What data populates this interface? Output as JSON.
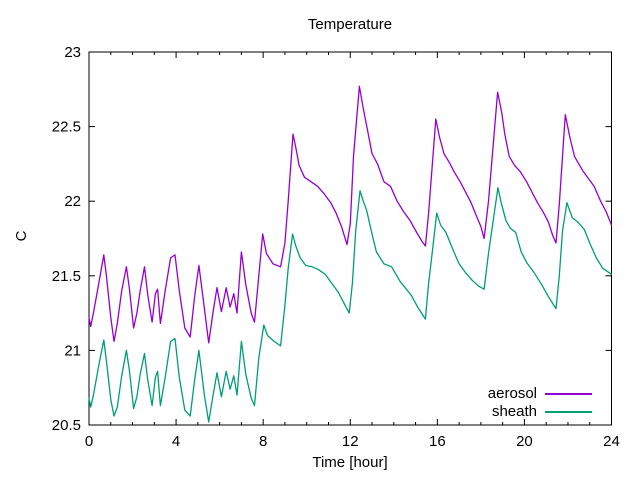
{
  "chart": {
    "background": "#ffffff",
    "text_color": "#000000",
    "border_color": "#000000"
  },
  "chart_data": {
    "type": "line",
    "title": "Temperature",
    "xlabel": "Time [hour]",
    "ylabel": "C",
    "xlim": [
      0,
      24
    ],
    "ylim": [
      20.5,
      23
    ],
    "x_ticks": [
      0,
      4,
      8,
      12,
      16,
      20,
      24
    ],
    "x_minor_tick_step": 1,
    "y_ticks": [
      20.5,
      21,
      21.5,
      22,
      22.5,
      23
    ],
    "grid": false,
    "legend_position": "bottom-right-inside",
    "series": [
      {
        "name": "aerosol",
        "color": "#9400d3",
        "points": [
          [
            0.0,
            21.22
          ],
          [
            0.08,
            21.16
          ],
          [
            0.2,
            21.25
          ],
          [
            0.45,
            21.45
          ],
          [
            0.68,
            21.64
          ],
          [
            0.8,
            21.5
          ],
          [
            1.0,
            21.22
          ],
          [
            1.15,
            21.06
          ],
          [
            1.3,
            21.18
          ],
          [
            1.5,
            21.4
          ],
          [
            1.72,
            21.56
          ],
          [
            1.85,
            21.42
          ],
          [
            2.05,
            21.15
          ],
          [
            2.2,
            21.25
          ],
          [
            2.35,
            21.4
          ],
          [
            2.55,
            21.56
          ],
          [
            2.7,
            21.37
          ],
          [
            2.9,
            21.19
          ],
          [
            3.05,
            21.38
          ],
          [
            3.15,
            21.41
          ],
          [
            3.28,
            21.18
          ],
          [
            3.5,
            21.4
          ],
          [
            3.75,
            21.62
          ],
          [
            3.95,
            21.64
          ],
          [
            4.15,
            21.4
          ],
          [
            4.4,
            21.15
          ],
          [
            4.65,
            21.09
          ],
          [
            4.85,
            21.36
          ],
          [
            5.05,
            21.57
          ],
          [
            5.3,
            21.28
          ],
          [
            5.5,
            21.05
          ],
          [
            5.7,
            21.26
          ],
          [
            5.88,
            21.42
          ],
          [
            6.08,
            21.26
          ],
          [
            6.3,
            21.42
          ],
          [
            6.48,
            21.29
          ],
          [
            6.65,
            21.38
          ],
          [
            6.8,
            21.25
          ],
          [
            7.0,
            21.66
          ],
          [
            7.2,
            21.44
          ],
          [
            7.45,
            21.25
          ],
          [
            7.6,
            21.19
          ],
          [
            7.8,
            21.5
          ],
          [
            7.98,
            21.78
          ],
          [
            8.15,
            21.65
          ],
          [
            8.45,
            21.58
          ],
          [
            8.8,
            21.56
          ],
          [
            9.0,
            21.72
          ],
          [
            9.15,
            22.0
          ],
          [
            9.37,
            22.45
          ],
          [
            9.5,
            22.36
          ],
          [
            9.65,
            22.24
          ],
          [
            9.9,
            22.16
          ],
          [
            10.2,
            22.13
          ],
          [
            10.5,
            22.1
          ],
          [
            10.8,
            22.05
          ],
          [
            11.1,
            21.99
          ],
          [
            11.35,
            21.92
          ],
          [
            11.6,
            21.83
          ],
          [
            11.85,
            21.71
          ],
          [
            12.0,
            21.85
          ],
          [
            12.15,
            22.3
          ],
          [
            12.42,
            22.77
          ],
          [
            12.6,
            22.62
          ],
          [
            12.8,
            22.47
          ],
          [
            13.0,
            22.32
          ],
          [
            13.25,
            22.25
          ],
          [
            13.55,
            22.13
          ],
          [
            13.85,
            22.1
          ],
          [
            14.15,
            22.0
          ],
          [
            14.45,
            21.93
          ],
          [
            14.75,
            21.87
          ],
          [
            15.05,
            21.79
          ],
          [
            15.3,
            21.73
          ],
          [
            15.45,
            21.7
          ],
          [
            15.6,
            21.92
          ],
          [
            15.93,
            22.55
          ],
          [
            16.1,
            22.43
          ],
          [
            16.3,
            22.32
          ],
          [
            16.55,
            22.26
          ],
          [
            16.8,
            22.19
          ],
          [
            17.05,
            22.13
          ],
          [
            17.3,
            22.06
          ],
          [
            17.55,
            21.99
          ],
          [
            17.8,
            21.9
          ],
          [
            18.0,
            21.83
          ],
          [
            18.15,
            21.75
          ],
          [
            18.35,
            22.0
          ],
          [
            18.77,
            22.73
          ],
          [
            18.95,
            22.6
          ],
          [
            19.1,
            22.45
          ],
          [
            19.3,
            22.3
          ],
          [
            19.55,
            22.24
          ],
          [
            19.8,
            22.2
          ],
          [
            20.1,
            22.13
          ],
          [
            20.35,
            22.06
          ],
          [
            20.6,
            21.99
          ],
          [
            20.85,
            21.93
          ],
          [
            21.1,
            21.86
          ],
          [
            21.3,
            21.77
          ],
          [
            21.45,
            21.72
          ],
          [
            21.6,
            21.98
          ],
          [
            21.88,
            22.58
          ],
          [
            22.1,
            22.42
          ],
          [
            22.3,
            22.3
          ],
          [
            22.5,
            22.25
          ],
          [
            22.7,
            22.2
          ],
          [
            22.95,
            22.15
          ],
          [
            23.2,
            22.1
          ],
          [
            23.5,
            22.0
          ],
          [
            23.75,
            21.93
          ],
          [
            24.0,
            21.84
          ]
        ]
      },
      {
        "name": "sheath",
        "color": "#009e73",
        "points": [
          [
            0.0,
            20.68
          ],
          [
            0.08,
            20.62
          ],
          [
            0.2,
            20.7
          ],
          [
            0.45,
            20.9
          ],
          [
            0.68,
            21.07
          ],
          [
            0.8,
            20.93
          ],
          [
            1.0,
            20.67
          ],
          [
            1.15,
            20.56
          ],
          [
            1.3,
            20.62
          ],
          [
            1.5,
            20.83
          ],
          [
            1.72,
            21.0
          ],
          [
            1.85,
            20.87
          ],
          [
            2.05,
            20.61
          ],
          [
            2.2,
            20.69
          ],
          [
            2.35,
            20.84
          ],
          [
            2.55,
            20.98
          ],
          [
            2.7,
            20.8
          ],
          [
            2.9,
            20.63
          ],
          [
            3.05,
            20.82
          ],
          [
            3.15,
            20.86
          ],
          [
            3.28,
            20.63
          ],
          [
            3.5,
            20.82
          ],
          [
            3.75,
            21.06
          ],
          [
            3.95,
            21.08
          ],
          [
            4.15,
            20.82
          ],
          [
            4.4,
            20.6
          ],
          [
            4.65,
            20.56
          ],
          [
            4.85,
            20.8
          ],
          [
            5.05,
            21.0
          ],
          [
            5.3,
            20.7
          ],
          [
            5.5,
            20.52
          ],
          [
            5.7,
            20.7
          ],
          [
            5.88,
            20.85
          ],
          [
            6.08,
            20.69
          ],
          [
            6.3,
            20.86
          ],
          [
            6.48,
            20.74
          ],
          [
            6.65,
            20.83
          ],
          [
            6.8,
            20.7
          ],
          [
            7.0,
            21.06
          ],
          [
            7.2,
            20.84
          ],
          [
            7.45,
            20.68
          ],
          [
            7.6,
            20.63
          ],
          [
            7.8,
            20.95
          ],
          [
            8.03,
            21.17
          ],
          [
            8.2,
            21.1
          ],
          [
            8.5,
            21.06
          ],
          [
            8.8,
            21.03
          ],
          [
            9.0,
            21.3
          ],
          [
            9.15,
            21.55
          ],
          [
            9.35,
            21.78
          ],
          [
            9.5,
            21.7
          ],
          [
            9.7,
            21.62
          ],
          [
            9.95,
            21.57
          ],
          [
            10.25,
            21.56
          ],
          [
            10.55,
            21.54
          ],
          [
            10.85,
            21.51
          ],
          [
            11.15,
            21.45
          ],
          [
            11.45,
            21.39
          ],
          [
            11.7,
            21.32
          ],
          [
            11.95,
            21.25
          ],
          [
            12.1,
            21.45
          ],
          [
            12.25,
            21.8
          ],
          [
            12.45,
            22.07
          ],
          [
            12.6,
            22.0
          ],
          [
            12.75,
            21.94
          ],
          [
            13.0,
            21.78
          ],
          [
            13.2,
            21.66
          ],
          [
            13.55,
            21.58
          ],
          [
            13.9,
            21.56
          ],
          [
            14.3,
            21.46
          ],
          [
            14.8,
            21.37
          ],
          [
            15.1,
            21.29
          ],
          [
            15.45,
            21.21
          ],
          [
            15.6,
            21.45
          ],
          [
            15.8,
            21.7
          ],
          [
            15.97,
            21.92
          ],
          [
            16.15,
            21.84
          ],
          [
            16.4,
            21.79
          ],
          [
            16.7,
            21.68
          ],
          [
            17.0,
            21.58
          ],
          [
            17.3,
            21.52
          ],
          [
            17.6,
            21.47
          ],
          [
            17.9,
            21.43
          ],
          [
            18.15,
            21.41
          ],
          [
            18.35,
            21.65
          ],
          [
            18.78,
            22.09
          ],
          [
            18.95,
            21.98
          ],
          [
            19.15,
            21.87
          ],
          [
            19.35,
            21.82
          ],
          [
            19.6,
            21.79
          ],
          [
            19.85,
            21.66
          ],
          [
            20.1,
            21.59
          ],
          [
            20.45,
            21.52
          ],
          [
            20.8,
            21.44
          ],
          [
            21.1,
            21.36
          ],
          [
            21.45,
            21.28
          ],
          [
            21.6,
            21.5
          ],
          [
            21.75,
            21.8
          ],
          [
            21.95,
            21.99
          ],
          [
            22.2,
            21.89
          ],
          [
            22.45,
            21.86
          ],
          [
            22.75,
            21.81
          ],
          [
            23.0,
            21.72
          ],
          [
            23.3,
            21.62
          ],
          [
            23.6,
            21.55
          ],
          [
            24.0,
            21.51
          ]
        ]
      }
    ]
  }
}
